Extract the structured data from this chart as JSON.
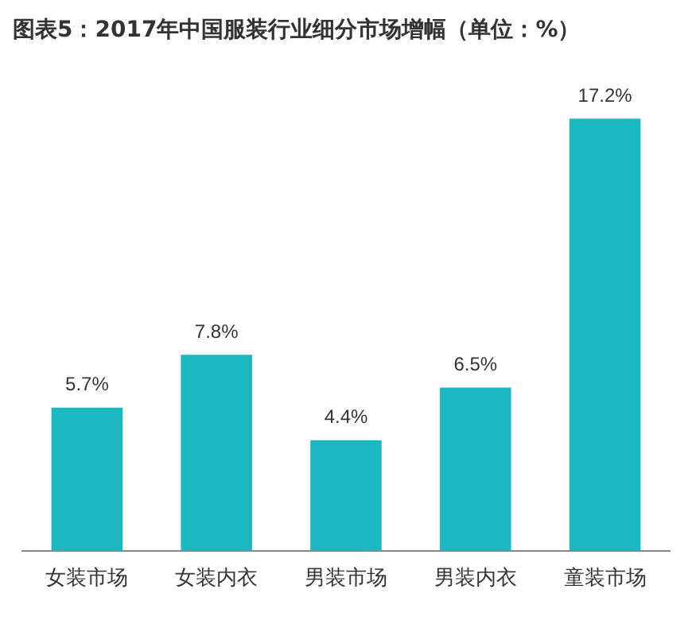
{
  "chart_data": {
    "type": "bar",
    "title": "图表5：2017年中国服装行业细分市场增幅（单位：%）",
    "categories": [
      "女装市场",
      "女装内衣",
      "男装市场",
      "男装内衣",
      "童装市场"
    ],
    "values": [
      5.7,
      7.8,
      4.4,
      6.5,
      17.2
    ],
    "color": "#1bb8c1",
    "value_labels": [
      "5.7%",
      "7.8%",
      "4.4%",
      "6.5%",
      "17.2%"
    ],
    "grid": false,
    "legend": false
  }
}
